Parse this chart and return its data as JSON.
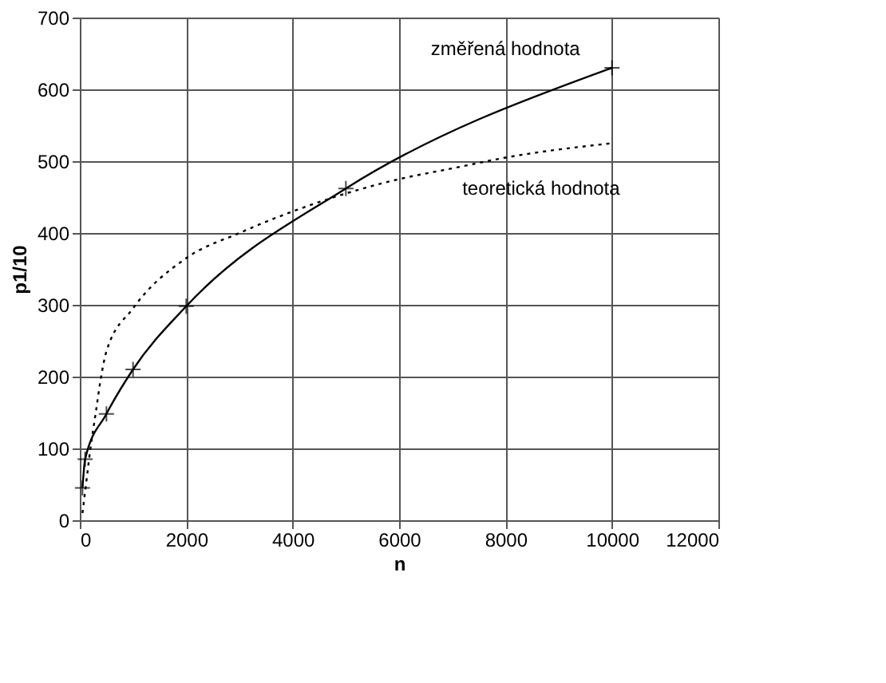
{
  "chart_data": {
    "type": "line",
    "xlabel": "n",
    "ylabel": "p1/10",
    "xlim": [
      0,
      12000
    ],
    "xticks": [
      0,
      2000,
      4000,
      6000,
      8000,
      10000,
      12000
    ],
    "ylim": [
      0,
      700
    ],
    "yticks": [
      0,
      100,
      200,
      300,
      400,
      500,
      600,
      700
    ],
    "grid": true,
    "series": [
      {
        "name": "změřená hodnota",
        "color": "#000000",
        "line_style": "solid",
        "marker": "cross",
        "x": [
          50,
          100,
          500,
          1000,
          2000,
          5000,
          10000
        ],
        "values": [
          45,
          85,
          148,
          210,
          298,
          462,
          630
        ]
      },
      {
        "name": "teoretická hodnota",
        "color": "#000000",
        "line_style": "dotted",
        "marker": "none",
        "x": [
          50,
          100,
          200,
          300,
          400,
          500,
          1000,
          2000,
          3000,
          4000,
          5000,
          6000,
          7000,
          8000,
          10000
        ],
        "values": [
          10,
          40,
          100,
          150,
          200,
          235,
          295,
          365,
          400,
          430,
          455,
          475,
          490,
          505,
          525
        ]
      }
    ]
  }
}
